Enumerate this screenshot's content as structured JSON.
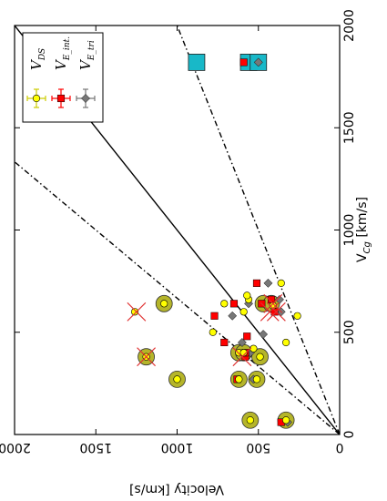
{
  "chart_data": {
    "type": "scatter",
    "orientation": "rotated-90-ccw",
    "xlabel": "V$_{Cg}$ [km/s]",
    "xlabel_main": "V",
    "xlabel_sub": "Cg",
    "xlabel_unit": " [km/s]",
    "ylabel": "Velocity [km/s]",
    "xlim": [
      0,
      2000
    ],
    "ylim": [
      0,
      2000
    ],
    "xticks": [
      "0",
      "500",
      "1000",
      "1500",
      "2000"
    ],
    "yticks": [
      "0",
      "500",
      "1000",
      "1500",
      "2000"
    ],
    "legend_position": "upper-left",
    "legend": [
      {
        "label": "V_DS",
        "main": "V",
        "sub": "DS",
        "marker": "circle",
        "color": "#ffff00",
        "errcolor": "#cccc00"
      },
      {
        "label": "V_E_int.",
        "main": "V",
        "sub": "E_int.",
        "marker": "square",
        "color": "#ff0000",
        "errcolor": "#ff0000"
      },
      {
        "label": "V_E_tri",
        "main": "V",
        "sub": "E_tri",
        "marker": "diamond",
        "color": "#777777",
        "errcolor": "#777777"
      }
    ],
    "reference_lines": [
      {
        "style": "solid",
        "slope": 1.0
      },
      {
        "style": "dashdot",
        "slope": 1.5
      },
      {
        "style": "dashdot",
        "slope": 0.5
      }
    ],
    "series": [
      {
        "name": "V_DS",
        "marker": "circle",
        "color": "#ffff00",
        "points": [
          [
            70,
            550
          ],
          [
            70,
            330
          ],
          [
            270,
            1000
          ],
          [
            270,
            620
          ],
          [
            270,
            510
          ],
          [
            380,
            1190
          ],
          [
            380,
            490
          ],
          [
            400,
            620
          ],
          [
            400,
            590
          ],
          [
            420,
            530
          ],
          [
            450,
            330
          ],
          [
            500,
            780
          ],
          [
            580,
            260
          ],
          [
            600,
            1260
          ],
          [
            600,
            590
          ],
          [
            630,
            410
          ],
          [
            640,
            710
          ],
          [
            640,
            1080
          ],
          [
            660,
            560
          ],
          [
            680,
            570
          ],
          [
            740,
            360
          ]
        ]
      },
      {
        "name": "V_E_int.",
        "marker": "square",
        "color": "#ff0000",
        "points": [
          [
            60,
            360
          ],
          [
            270,
            630
          ],
          [
            380,
            580
          ],
          [
            400,
            580
          ],
          [
            450,
            710
          ],
          [
            480,
            570
          ],
          [
            580,
            770
          ],
          [
            600,
            400
          ],
          [
            640,
            650
          ],
          [
            640,
            480
          ],
          [
            660,
            420
          ],
          [
            740,
            510
          ],
          [
            1820,
            590
          ]
        ]
      },
      {
        "name": "V_E_tri",
        "marker": "diamond",
        "color": "#777777",
        "points": [
          [
            60,
            320
          ],
          [
            270,
            530
          ],
          [
            400,
            550
          ],
          [
            450,
            600
          ],
          [
            490,
            470
          ],
          [
            580,
            660
          ],
          [
            600,
            360
          ],
          [
            640,
            560
          ],
          [
            660,
            370
          ],
          [
            740,
            440
          ],
          [
            1820,
            500
          ]
        ]
      }
    ],
    "highlighted": {
      "olive_circles": [
        [
          70,
          550
        ],
        [
          70,
          330
        ],
        [
          270,
          1000
        ],
        [
          270,
          620
        ],
        [
          270,
          510
        ],
        [
          380,
          1190
        ],
        [
          380,
          490
        ],
        [
          400,
          620
        ],
        [
          400,
          590
        ],
        [
          640,
          1080
        ],
        [
          640,
          470
        ],
        [
          640,
          420
        ]
      ],
      "red_crosses": [
        [
          600,
          1250
        ],
        [
          380,
          1190
        ],
        [
          640,
          410
        ],
        [
          600,
          430
        ],
        [
          600,
          390
        ],
        [
          380,
          600
        ]
      ],
      "cyan_boxes": [
        [
          1820,
          880
        ],
        [
          1820,
          560
        ],
        [
          1820,
          500
        ]
      ]
    }
  }
}
